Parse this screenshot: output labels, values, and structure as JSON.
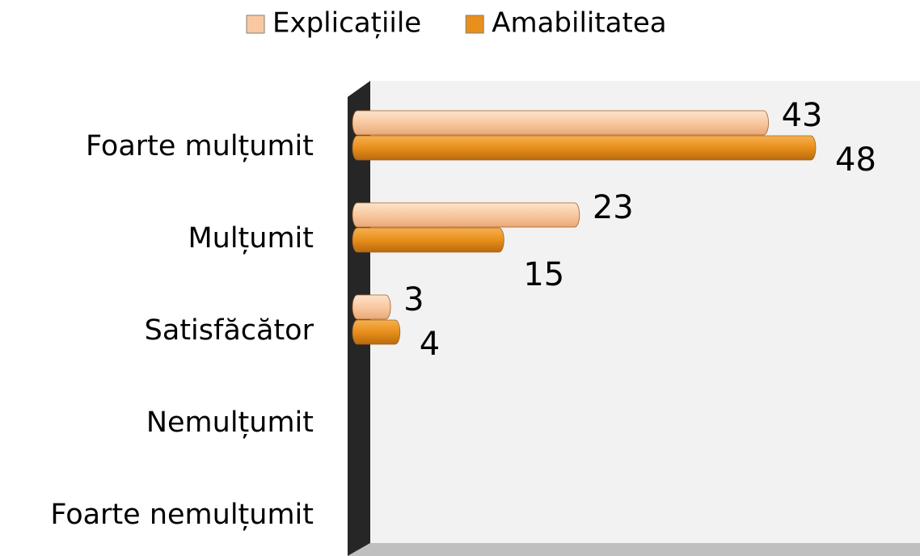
{
  "chart_data": {
    "type": "bar",
    "orientation": "horizontal",
    "categories": [
      "Foarte mulțumit",
      "Mulțumit",
      "Satisfăcător",
      "Nemulțumit",
      "Foarte nemulțumit"
    ],
    "series": [
      {
        "name": "Explicațiile",
        "color": "#f9c8a0",
        "values": [
          43,
          23,
          3,
          null,
          null
        ]
      },
      {
        "name": "Amabilitatea",
        "color": "#e88f1c",
        "values": [
          48,
          15,
          4,
          null,
          null
        ]
      }
    ]
  }
}
